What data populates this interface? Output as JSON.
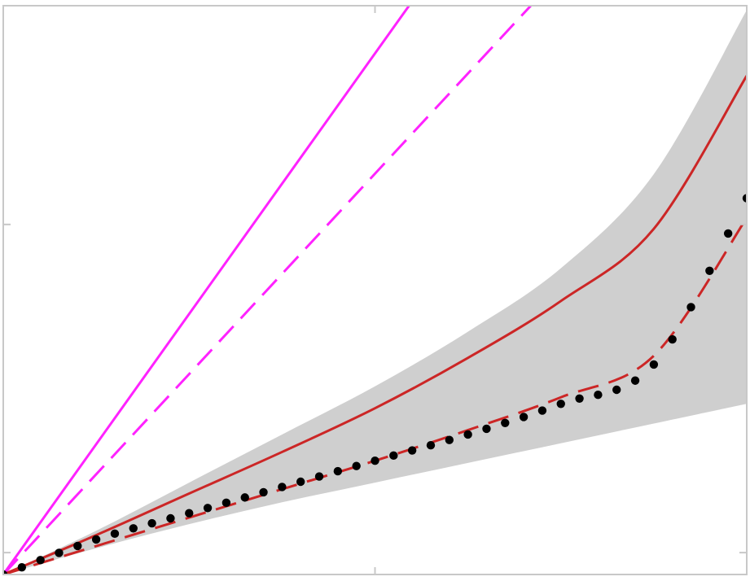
{
  "chart_data": {
    "type": "line",
    "title": "",
    "xlabel": "",
    "ylabel": "",
    "xlim": [
      0,
      2
    ],
    "ylim": [
      0,
      2.6
    ],
    "xticks": [
      1
    ],
    "yticks": [
      0.1,
      1.6
    ],
    "grid": false,
    "legend": "none",
    "colors": {
      "band": "#cfcfcf",
      "magenta": "#ff22ff",
      "red": "#cc2626",
      "dots": "#000000",
      "axes": "#c8c8c8"
    },
    "band": {
      "x": [
        0,
        0.25,
        0.5,
        0.75,
        1.0,
        1.25,
        1.5,
        1.75,
        2.0
      ],
      "lower": [
        0,
        0.12,
        0.23,
        0.33,
        0.42,
        0.51,
        0.6,
        0.69,
        0.78
      ],
      "upper": [
        0,
        0.2,
        0.42,
        0.64,
        0.86,
        1.11,
        1.4,
        1.83,
        2.58
      ]
    },
    "series": [
      {
        "style": "solid",
        "color": "magenta",
        "x": [
          0,
          1.1
        ],
        "y": [
          0,
          2.62
        ]
      },
      {
        "style": "dashed",
        "color": "magenta",
        "x": [
          0,
          1.43
        ],
        "y": [
          0,
          2.62
        ]
      },
      {
        "style": "solid",
        "color": "red",
        "x": [
          0,
          0.25,
          0.5,
          0.75,
          1.0,
          1.25,
          1.5,
          1.75,
          2.0
        ],
        "y": [
          0,
          0.18,
          0.37,
          0.56,
          0.76,
          0.99,
          1.25,
          1.58,
          2.28
        ]
      },
      {
        "style": "dashed",
        "color": "red",
        "x": [
          0,
          0.25,
          0.5,
          0.75,
          1.0,
          1.25,
          1.5,
          1.75,
          2.0
        ],
        "y": [
          0,
          0.13,
          0.26,
          0.39,
          0.52,
          0.66,
          0.81,
          1.0,
          1.63
        ]
      },
      {
        "style": "dots",
        "color": "dots",
        "x": [
          0,
          0.25,
          0.5,
          0.75,
          1.0,
          1.25,
          1.5,
          1.75,
          2.0
        ],
        "y": [
          0,
          0.16,
          0.28,
          0.4,
          0.52,
          0.64,
          0.78,
          0.96,
          1.72
        ]
      }
    ]
  }
}
